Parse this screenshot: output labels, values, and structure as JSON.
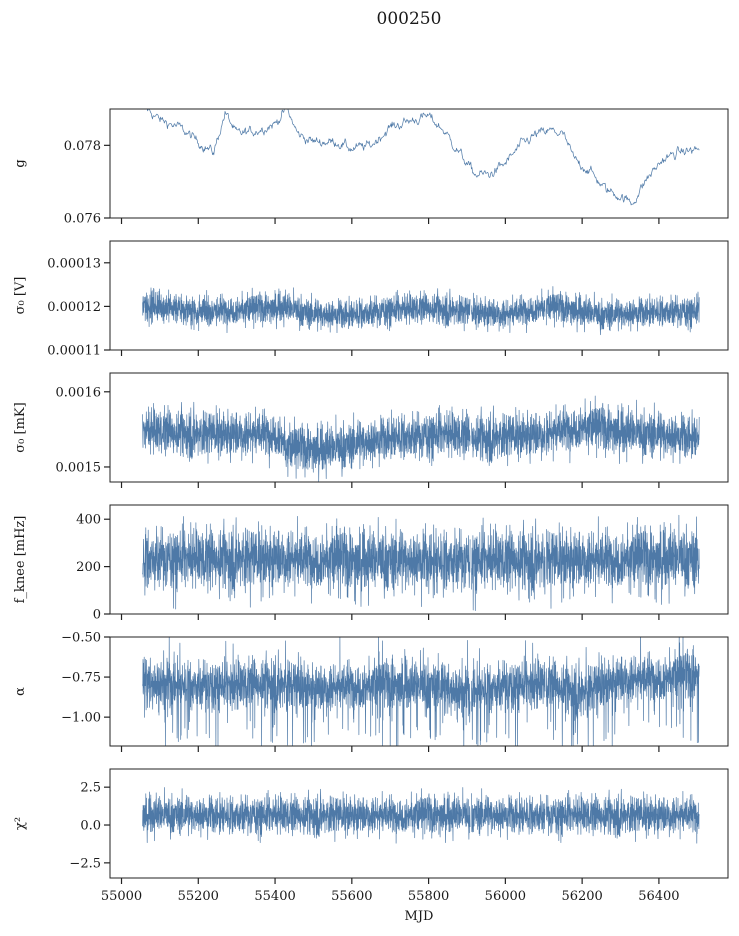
{
  "figure_title": "000250",
  "colors": {
    "series": "#4e79a7"
  },
  "chart_data": [
    {
      "type": "line",
      "panel": "g",
      "ylabel": "g",
      "xlim": [
        54970,
        56580
      ],
      "ylim": [
        0.076,
        0.079
      ],
      "yticks": [
        0.076,
        0.078
      ],
      "ytick_labels": [
        "0.076",
        "0.078"
      ],
      "xticks": [
        55000,
        55200,
        55400,
        55600,
        55800,
        56000,
        56200,
        56400
      ],
      "data_span": [
        55055,
        56505
      ],
      "trend": [
        [
          55055,
          0.0791
        ],
        [
          55100,
          0.0787
        ],
        [
          55150,
          0.0785
        ],
        [
          55200,
          0.0781
        ],
        [
          55240,
          0.0778
        ],
        [
          55270,
          0.0789
        ],
        [
          55300,
          0.0783
        ],
        [
          55350,
          0.0784
        ],
        [
          55400,
          0.0786
        ],
        [
          55430,
          0.079
        ],
        [
          55460,
          0.0783
        ],
        [
          55500,
          0.0781
        ],
        [
          55560,
          0.0781
        ],
        [
          55600,
          0.0779
        ],
        [
          55650,
          0.078
        ],
        [
          55700,
          0.0785
        ],
        [
          55760,
          0.0787
        ],
        [
          55800,
          0.0788
        ],
        [
          55840,
          0.0784
        ],
        [
          55880,
          0.0778
        ],
        [
          55920,
          0.0772
        ],
        [
          55960,
          0.0772
        ],
        [
          56000,
          0.0775
        ],
        [
          56040,
          0.078
        ],
        [
          56080,
          0.0783
        ],
        [
          56120,
          0.0784
        ],
        [
          56150,
          0.0783
        ],
        [
          56180,
          0.0776
        ],
        [
          56220,
          0.0773
        ],
        [
          56260,
          0.0768
        ],
        [
          56300,
          0.0766
        ],
        [
          56330,
          0.0764
        ],
        [
          56370,
          0.0771
        ],
        [
          56410,
          0.0776
        ],
        [
          56450,
          0.0778
        ],
        [
          56505,
          0.0779
        ]
      ],
      "noise": 0.00025,
      "noise_tail": 0,
      "gaps": []
    },
    {
      "type": "line",
      "panel": "sigma0_V",
      "ylabel": "σ₀ [V]",
      "xlim": [
        54970,
        56580
      ],
      "ylim": [
        0.00011,
        0.000135
      ],
      "yticks": [
        0.00011,
        0.00012,
        0.00013
      ],
      "ytick_labels": [
        "0.00011",
        "0.00012",
        "0.00013"
      ],
      "xticks": [
        55000,
        55200,
        55400,
        55600,
        55800,
        56000,
        56200,
        56400
      ],
      "data_span": [
        55055,
        56505
      ],
      "trend": [
        [
          55055,
          0.0001205
        ],
        [
          55200,
          0.000119
        ],
        [
          55350,
          0.0001195
        ],
        [
          55420,
          0.00012
        ],
        [
          55500,
          0.0001182
        ],
        [
          55600,
          0.0001183
        ],
        [
          55700,
          0.0001193
        ],
        [
          55800,
          0.0001198
        ],
        [
          55900,
          0.000119
        ],
        [
          56000,
          0.0001183
        ],
        [
          56100,
          0.00012
        ],
        [
          56170,
          0.0001195
        ],
        [
          56250,
          0.000118
        ],
        [
          56400,
          0.000119
        ],
        [
          56505,
          0.000119
        ]
      ],
      "noise": 2.5e-06,
      "noise_tail": 1.2e-06,
      "gaps": [
        55910,
        56105
      ]
    },
    {
      "type": "line",
      "panel": "sigma0_mK",
      "ylabel": "σ₀ [mK]",
      "xlim": [
        54970,
        56580
      ],
      "ylim": [
        0.00148,
        0.001625
      ],
      "yticks": [
        0.0015,
        0.0016
      ],
      "ytick_labels": [
        "0.0015",
        "0.0016"
      ],
      "xticks": [
        55000,
        55200,
        55400,
        55600,
        55800,
        56000,
        56200,
        56400
      ],
      "data_span": [
        55055,
        56505
      ],
      "trend": [
        [
          55055,
          0.00155
        ],
        [
          55200,
          0.001545
        ],
        [
          55410,
          0.001545
        ],
        [
          55430,
          0.001525
        ],
        [
          55550,
          0.001525
        ],
        [
          55700,
          0.00154
        ],
        [
          55850,
          0.001545
        ],
        [
          55950,
          0.00154
        ],
        [
          56100,
          0.001545
        ],
        [
          56200,
          0.001555
        ],
        [
          56350,
          0.001545
        ],
        [
          56505,
          0.00154
        ]
      ],
      "noise": 2.2e-05,
      "noise_tail": 1e-05,
      "gaps": [
        55910,
        56105
      ]
    },
    {
      "type": "line",
      "panel": "fknee",
      "ylabel": "f_knee [mHz]",
      "xlim": [
        54970,
        56580
      ],
      "ylim": [
        0,
        460
      ],
      "yticks": [
        0,
        200,
        400
      ],
      "ytick_labels": [
        "0",
        "200",
        "400"
      ],
      "xticks": [
        55000,
        55200,
        55400,
        55600,
        55800,
        56000,
        56200,
        56400
      ],
      "data_span": [
        55055,
        56505
      ],
      "trend": [
        [
          55055,
          240
        ],
        [
          55400,
          240
        ],
        [
          55600,
          230
        ],
        [
          55800,
          230
        ],
        [
          56000,
          235
        ],
        [
          56200,
          235
        ],
        [
          56505,
          240
        ]
      ],
      "noise": 90,
      "noise_tail": 70,
      "gaps": [
        55910,
        56105
      ]
    },
    {
      "type": "line",
      "panel": "alpha",
      "ylabel": "α",
      "xlim": [
        54970,
        56580
      ],
      "ylim": [
        -1.18,
        -0.5
      ],
      "yticks": [
        -1.0,
        -0.75,
        -0.5
      ],
      "ytick_labels": [
        "−1.00",
        "−0.75",
        "−0.50"
      ],
      "xticks": [
        55000,
        55200,
        55400,
        55600,
        55800,
        56000,
        56200,
        56400
      ],
      "data_span": [
        55055,
        56505
      ],
      "trend": [
        [
          55055,
          -0.78
        ],
        [
          55200,
          -0.8
        ],
        [
          55400,
          -0.78
        ],
        [
          55500,
          -0.82
        ],
        [
          55600,
          -0.8
        ],
        [
          55800,
          -0.8
        ],
        [
          55900,
          -0.84
        ],
        [
          56000,
          -0.8
        ],
        [
          56100,
          -0.78
        ],
        [
          56200,
          -0.84
        ],
        [
          56300,
          -0.76
        ],
        [
          56505,
          -0.74
        ]
      ],
      "noise": 0.11,
      "noise_tail": 0.18,
      "gaps": [
        55910,
        56105
      ]
    },
    {
      "type": "line",
      "panel": "chi2",
      "ylabel": "χ²",
      "xlabel": "MJD",
      "xlim": [
        54970,
        56580
      ],
      "ylim": [
        -3.5,
        3.7
      ],
      "yticks": [
        -2.5,
        0.0,
        2.5
      ],
      "ytick_labels": [
        "−2.5",
        "0.0",
        "2.5"
      ],
      "xticks": [
        55000,
        55200,
        55400,
        55600,
        55800,
        56000,
        56200,
        56400
      ],
      "xtick_labels": [
        "55000",
        "55200",
        "55400",
        "55600",
        "55800",
        "56000",
        "56200",
        "56400"
      ],
      "data_span": [
        55055,
        56505
      ],
      "trend": [
        [
          55055,
          0.7
        ],
        [
          56505,
          0.7
        ]
      ],
      "noise": 0.9,
      "noise_tail": 0.5,
      "gaps": [
        55910,
        56105
      ]
    }
  ]
}
